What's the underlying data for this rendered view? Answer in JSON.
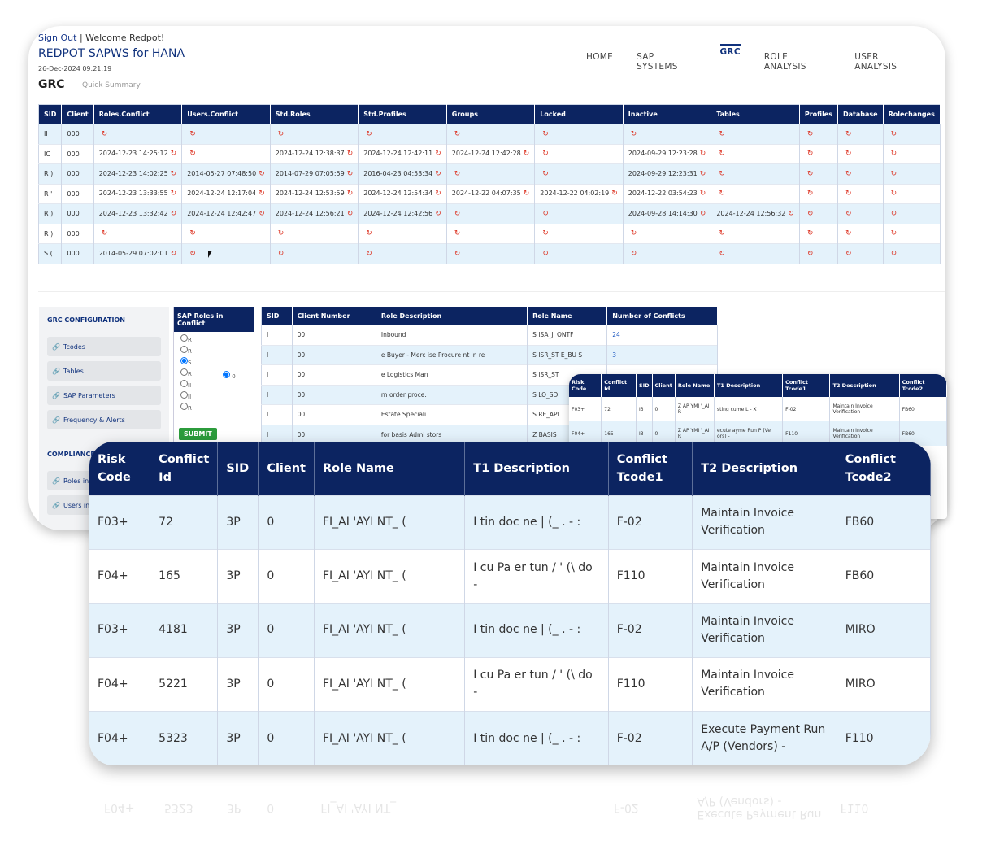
{
  "header": {
    "sign_out": "Sign Out",
    "separator": "|",
    "welcome": "Welcome Redpot!",
    "app_title": "REDPOT SAPWS for HANA",
    "datetime": "26-Dec-2024 09:21:19",
    "page_heading": "GRC",
    "page_sub": "Quick Summary"
  },
  "nav": [
    "HOME",
    "SAP SYSTEMS",
    "GRC",
    "ROLE ANALYSIS",
    "USER ANALYSIS"
  ],
  "summary": {
    "columns": [
      "SID",
      "Client",
      "Roles.Conflict",
      "Users.Conflict",
      "Std.Roles",
      "Std.Profiles",
      "Groups",
      "Locked",
      "Inactive",
      "Tables",
      "Profiles",
      "Database",
      "Rolechanges"
    ],
    "rows": [
      [
        "II",
        "000",
        "",
        "",
        "",
        "",
        "",
        "",
        "",
        "",
        "",
        "",
        ""
      ],
      [
        "IC",
        "000",
        "2024-12-23 14:25:12",
        "",
        "2024-12-24 12:38:37",
        "2024-12-24 12:42:11",
        "2024-12-24 12:42:28",
        "",
        "2024-09-29 12:23:28",
        "",
        "",
        "",
        ""
      ],
      [
        "R )",
        "000",
        "2024-12-23 14:02:25",
        "2014-05-27 07:48:50",
        "2014-07-29 07:05:59",
        "2016-04-23 04:53:34",
        "",
        "",
        "2024-09-29 12:23:31",
        "",
        "",
        "",
        ""
      ],
      [
        "R '",
        "000",
        "2024-12-23 13:33:55",
        "2024-12-24 12:17:04",
        "2024-12-24 12:53:59",
        "2024-12-24 12:54:34",
        "2024-12-22 04:07:35",
        "2024-12-22 04:02:19",
        "2024-12-22 03:54:23",
        "",
        "",
        "",
        ""
      ],
      [
        "R )",
        "000",
        "2024-12-23 13:32:42",
        "2024-12-24 12:42:47",
        "2024-12-24 12:56:21",
        "2024-12-24 12:42:56",
        "",
        "",
        "2024-09-28 14:14:30",
        "2024-12-24 12:56:32",
        "",
        "",
        ""
      ],
      [
        "R )",
        "000",
        "",
        "",
        "",
        "",
        "",
        "",
        "",
        "",
        "",
        "",
        ""
      ],
      [
        "S (",
        "000",
        "2014-05-29 07:02:01",
        "",
        "",
        "",
        "",
        "",
        "",
        "",
        "",
        "",
        ""
      ]
    ]
  },
  "config": {
    "title": "GRC CONFIGURATION",
    "items": [
      "Tcodes",
      "Tables",
      "SAP Parameters",
      "Frequency & Alerts"
    ],
    "compliance_title": "COMPLIANCE",
    "compliance_items": [
      "Roles in",
      "Users in"
    ]
  },
  "roles_box": {
    "title": "SAP Roles in Conflict",
    "options": [
      "R",
      "R",
      "S",
      "R",
      "II",
      "II",
      "R"
    ],
    "right_label": "0",
    "submit": "SUBMIT"
  },
  "role_table": {
    "columns": [
      "SID",
      "Client Number",
      "Role Description",
      "Role Name",
      "Number of Conflicts"
    ],
    "rows": [
      [
        "I",
        "00",
        "Inbound",
        "S  ISA_JI   ONTF",
        "24"
      ],
      [
        "I",
        "00",
        "e Buyer - Merc    ise Procure   nt in      re",
        "S  ISR_ST    E_BU    S",
        "3"
      ],
      [
        "I",
        "00",
        "e Logistics Man",
        "S  ISR_ST",
        ""
      ],
      [
        "I",
        "00",
        "rn order proce:",
        "S  LO_SD",
        ""
      ],
      [
        "I",
        "00",
        "Estate Speciali",
        "S  RE_API",
        ""
      ],
      [
        "I",
        "00",
        "for basis Admi      stors",
        "Z  BASIS",
        ""
      ]
    ]
  },
  "mid_table": {
    "columns": [
      "Risk Code",
      "Conflict Id",
      "SID",
      "Client",
      "Role Name",
      "T1 Description",
      "Conflict Tcode1",
      "T2 Description",
      "Conflict Tcode2"
    ],
    "rows": [
      [
        "F03+",
        "72",
        "I3",
        "0",
        "Z  AP  YMI  '_AI  R",
        "sting    cume L - X",
        "F-02",
        "Maintain Invoice Verification",
        "FB60"
      ],
      [
        "F04+",
        "165",
        "I3",
        "0",
        "Z  AP  YMI  '_AI  R",
        "ecute  ayme   Run P (Ve   ors) -",
        "F110",
        "Maintain Invoice Verification",
        "FB60"
      ]
    ]
  },
  "conflicts": {
    "columns": [
      "Risk Code",
      "Conflict Id",
      "SID",
      "Client",
      "Role Name",
      "T1 Description",
      "Conflict Tcode1",
      "T2 Description",
      "Conflict Tcode2"
    ],
    "rows": [
      [
        "F03+",
        "72",
        "3P",
        "0",
        "FI_AI    'AYI    NT_    (",
        "I    tin    doc    ne    |  (_ . -     :",
        "F-02",
        "Maintain Invoice Verification",
        "FB60"
      ],
      [
        "F04+",
        "165",
        "3P",
        "0",
        "FI_AI    'AYI    NT_    (",
        "I    cu    Pa    er    tun  /  ' (\\    do    -",
        "F110",
        "Maintain Invoice Verification",
        "FB60"
      ],
      [
        "F03+",
        "4181",
        "3P",
        "0",
        "FI_AI    'AYI    NT_    (",
        "I    tin    doc    ne    |  (_ . -     :",
        "F-02",
        "Maintain Invoice Verification",
        "MIRO"
      ],
      [
        "F04+",
        "5221",
        "3P",
        "0",
        "FI_AI    'AYI    NT_    (",
        "I    cu    Pa    er    tun  /  ' (\\    do    -",
        "F110",
        "Maintain Invoice Verification",
        "MIRO"
      ],
      [
        "F04+",
        "5323",
        "3P",
        "0",
        "FI_AI    'AYI    NT_    (",
        "I    tin    doc    ne    |  (_ . -     :",
        "F-02",
        "Execute Payment Run A/P (Vendors) -",
        "F110"
      ]
    ]
  },
  "reflection": {
    "cells": [
      "F04+",
      "5323",
      "3P",
      "0",
      "FI_AI 'AYI NT_",
      "",
      "F-02",
      "Execute Payment Run A/P (Vendors) -",
      "F110"
    ]
  },
  "icons": {
    "refresh": "refresh-icon",
    "link": "link-icon"
  },
  "colors": {
    "header_navy": "#0c2461",
    "row_alt": "#e4f2fb",
    "refresh_red": "#dd3322",
    "submit_green": "#2c9c3c"
  }
}
